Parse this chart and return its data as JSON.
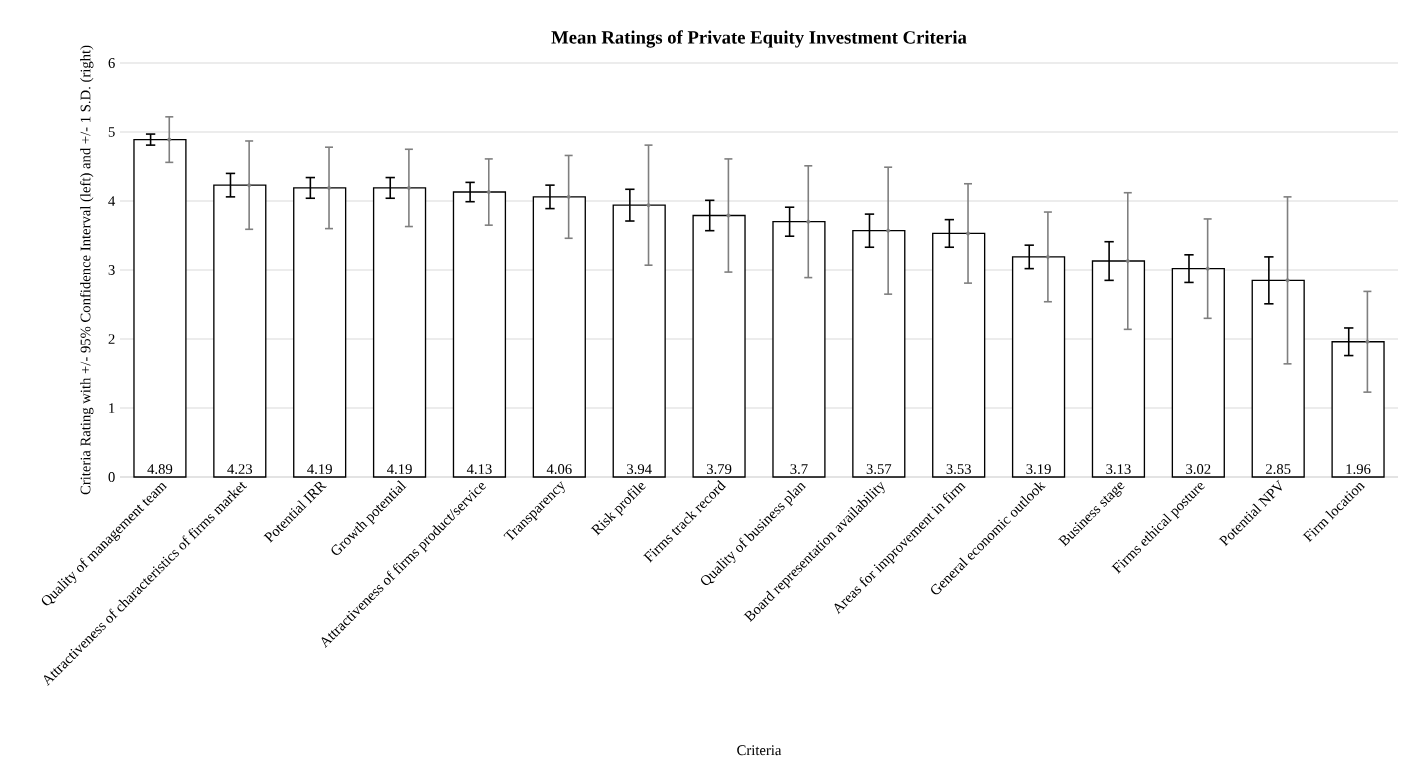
{
  "chart_data": {
    "type": "bar",
    "title": "Mean Ratings of Private Equity Investment Criteria",
    "xlabel": "Criteria",
    "ylabel": "Criteria Rating with +/- 95% Confidence Interval (left) and +/- 1 S.D. (right)",
    "categories": [
      "Quality of management team",
      "Attractiveness of characteristics of firms market",
      "Potential IRR",
      "Growth potential",
      "Attractiveness of firms product/service",
      "Transparency",
      "Risk profile",
      "Firms track record",
      "Quality of business plan",
      "Board representation availability",
      "Areas for improvement in firm",
      "General economic outlook",
      "Business stage",
      "Firms ethical posture",
      "Potential NPV",
      "Firm location"
    ],
    "series": [
      {
        "color": "#ffffff",
        "values": [
          4.89,
          4.23,
          4.19,
          4.19,
          4.13,
          4.06,
          3.94,
          3.79,
          3.7,
          3.57,
          3.53,
          3.19,
          3.13,
          3.02,
          2.85,
          1.96
        ],
        "value_labels": [
          "4.89",
          "4.23",
          "4.19",
          "4.19",
          "4.13",
          "4.06",
          "3.94",
          "3.79",
          "3.7",
          "3.57",
          "3.53",
          "3.19",
          "3.13",
          "3.02",
          "2.85",
          "1.96"
        ],
        "errors": [
          0.08,
          0.17,
          0.15,
          0.15,
          0.14,
          0.17,
          0.23,
          0.22,
          0.21,
          0.24,
          0.2,
          0.17,
          0.28,
          0.2,
          0.34,
          0.2
        ]
      },
      {
        "type": "scatter",
        "marker": "circle",
        "color": "#7f7f7f",
        "x": [
          "Quality of management team",
          "Attractiveness of characteristics of firms market",
          "Potential IRR",
          "Growth potential",
          "Attractiveness of firms product/service",
          "Transparency",
          "Risk profile",
          "Firms track record",
          "Quality of business plan",
          "Board representation availability",
          "Areas for improvement in firm",
          "General economic outlook",
          "Business stage",
          "Firms ethical posture",
          "Potential NPV",
          "Firm location"
        ],
        "values": [
          4.89,
          4.23,
          4.19,
          4.19,
          4.13,
          4.06,
          3.94,
          3.79,
          3.7,
          3.57,
          3.53,
          3.19,
          3.13,
          3.02,
          2.85,
          1.96
        ],
        "errors": [
          0.33,
          0.64,
          0.59,
          0.56,
          0.48,
          0.6,
          0.87,
          0.82,
          0.81,
          0.92,
          0.72,
          0.65,
          0.99,
          0.72,
          1.21,
          0.73
        ]
      }
    ],
    "ylim": [
      0,
      6
    ],
    "yticks": [
      0,
      1,
      2,
      3,
      4,
      5,
      6
    ],
    "grid": "y"
  }
}
